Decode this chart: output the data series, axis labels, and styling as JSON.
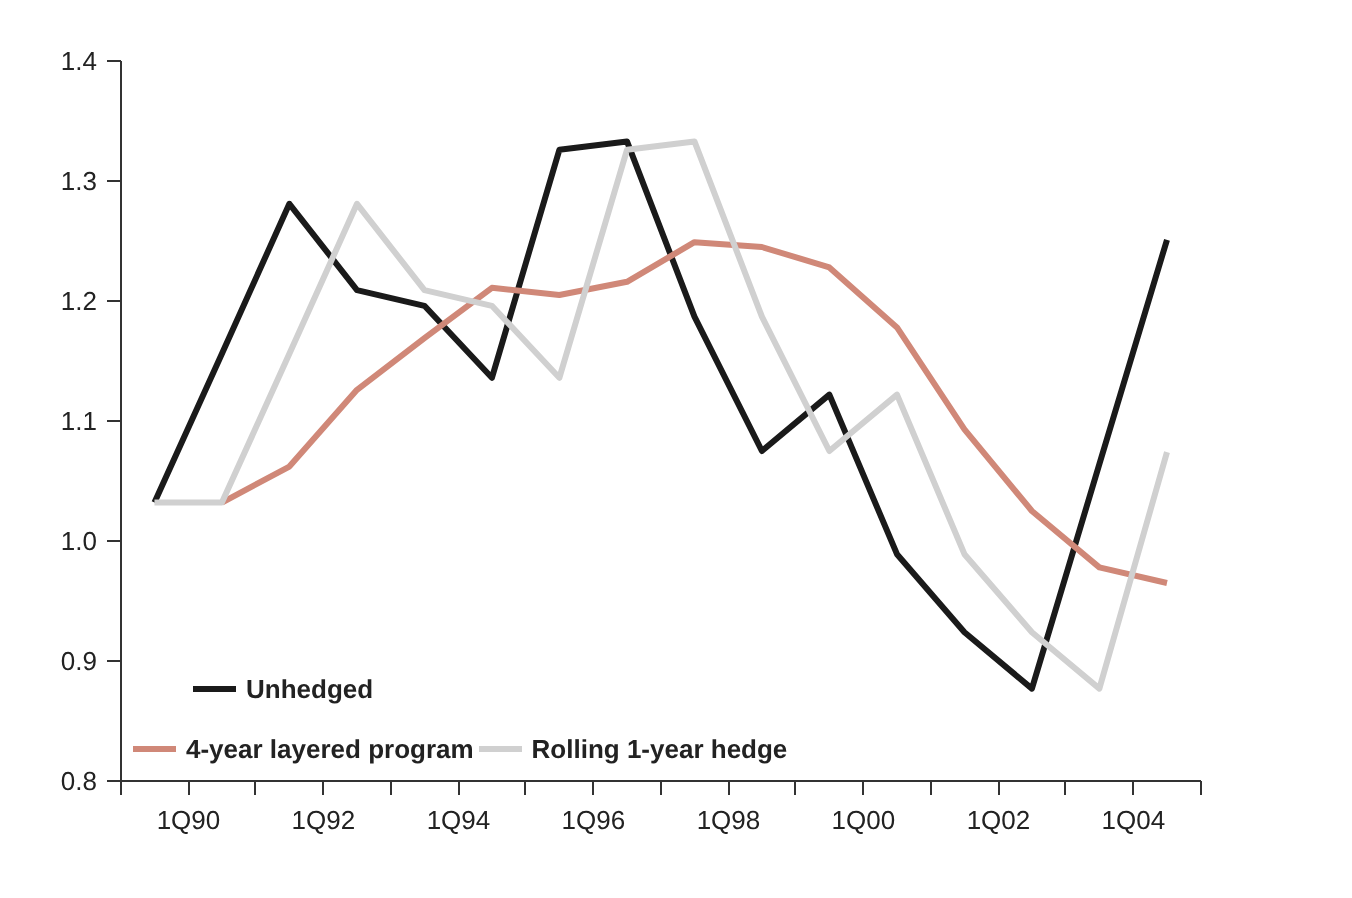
{
  "chart_data": {
    "type": "line",
    "x": [
      "1989-07",
      "1990-07",
      "1991-07",
      "1992-07",
      "1993-07",
      "1994-07",
      "1995-07",
      "1996-07",
      "1997-07",
      "1998-07",
      "1999-07",
      "2000-07",
      "2001-07",
      "2002-07",
      "2003-07",
      "2004-07"
    ],
    "series": [
      {
        "name": "Unhedged",
        "color": "#1a1a1a",
        "values": [
          1.032,
          1.156,
          1.281,
          1.209,
          1.196,
          1.136,
          1.326,
          1.333,
          1.187,
          1.075,
          1.122,
          0.989,
          0.924,
          0.877,
          1.064,
          1.251
        ]
      },
      {
        "name": "4-year layered program",
        "color": "#d08878",
        "values": [
          null,
          1.032,
          1.062,
          1.126,
          1.169,
          1.211,
          1.205,
          1.216,
          1.249,
          1.245,
          1.228,
          1.178,
          1.093,
          1.025,
          0.978,
          0.965
        ]
      },
      {
        "name": "Rolling 1-year hedge",
        "color": "#d0d0d0",
        "values": [
          1.032,
          1.032,
          1.156,
          1.281,
          1.209,
          1.196,
          1.136,
          1.326,
          1.333,
          1.187,
          1.075,
          1.122,
          0.989,
          0.924,
          0.877,
          1.074
        ]
      }
    ],
    "xlim": [
      "1989-01",
      "2005-01"
    ],
    "xticks": [
      {
        "value": "1989-01",
        "label": null
      },
      {
        "value": "1990-01",
        "label": "1Q90"
      },
      {
        "value": "1991-01",
        "label": null
      },
      {
        "value": "1992-01",
        "label": "1Q92"
      },
      {
        "value": "1993-01",
        "label": null
      },
      {
        "value": "1994-01",
        "label": "1Q94"
      },
      {
        "value": "1995-01",
        "label": null
      },
      {
        "value": "1996-01",
        "label": "1Q96"
      },
      {
        "value": "1997-01",
        "label": null
      },
      {
        "value": "1998-01",
        "label": "1Q98"
      },
      {
        "value": "1999-01",
        "label": null
      },
      {
        "value": "2000-01",
        "label": "1Q00"
      },
      {
        "value": "2001-01",
        "label": null
      },
      {
        "value": "2002-01",
        "label": "1Q02"
      },
      {
        "value": "2003-01",
        "label": null
      },
      {
        "value": "2004-01",
        "label": "1Q04"
      },
      {
        "value": "2005-01",
        "label": null
      }
    ],
    "ylim": [
      0.8,
      1.4
    ],
    "yticks": [
      0.8,
      0.9,
      {
        "value": 1.0,
        "label": "1.0"
      },
      1.1,
      1.2,
      1.3,
      1.4
    ],
    "grid": false,
    "legend": "bottom left",
    "line_style": "solid"
  }
}
